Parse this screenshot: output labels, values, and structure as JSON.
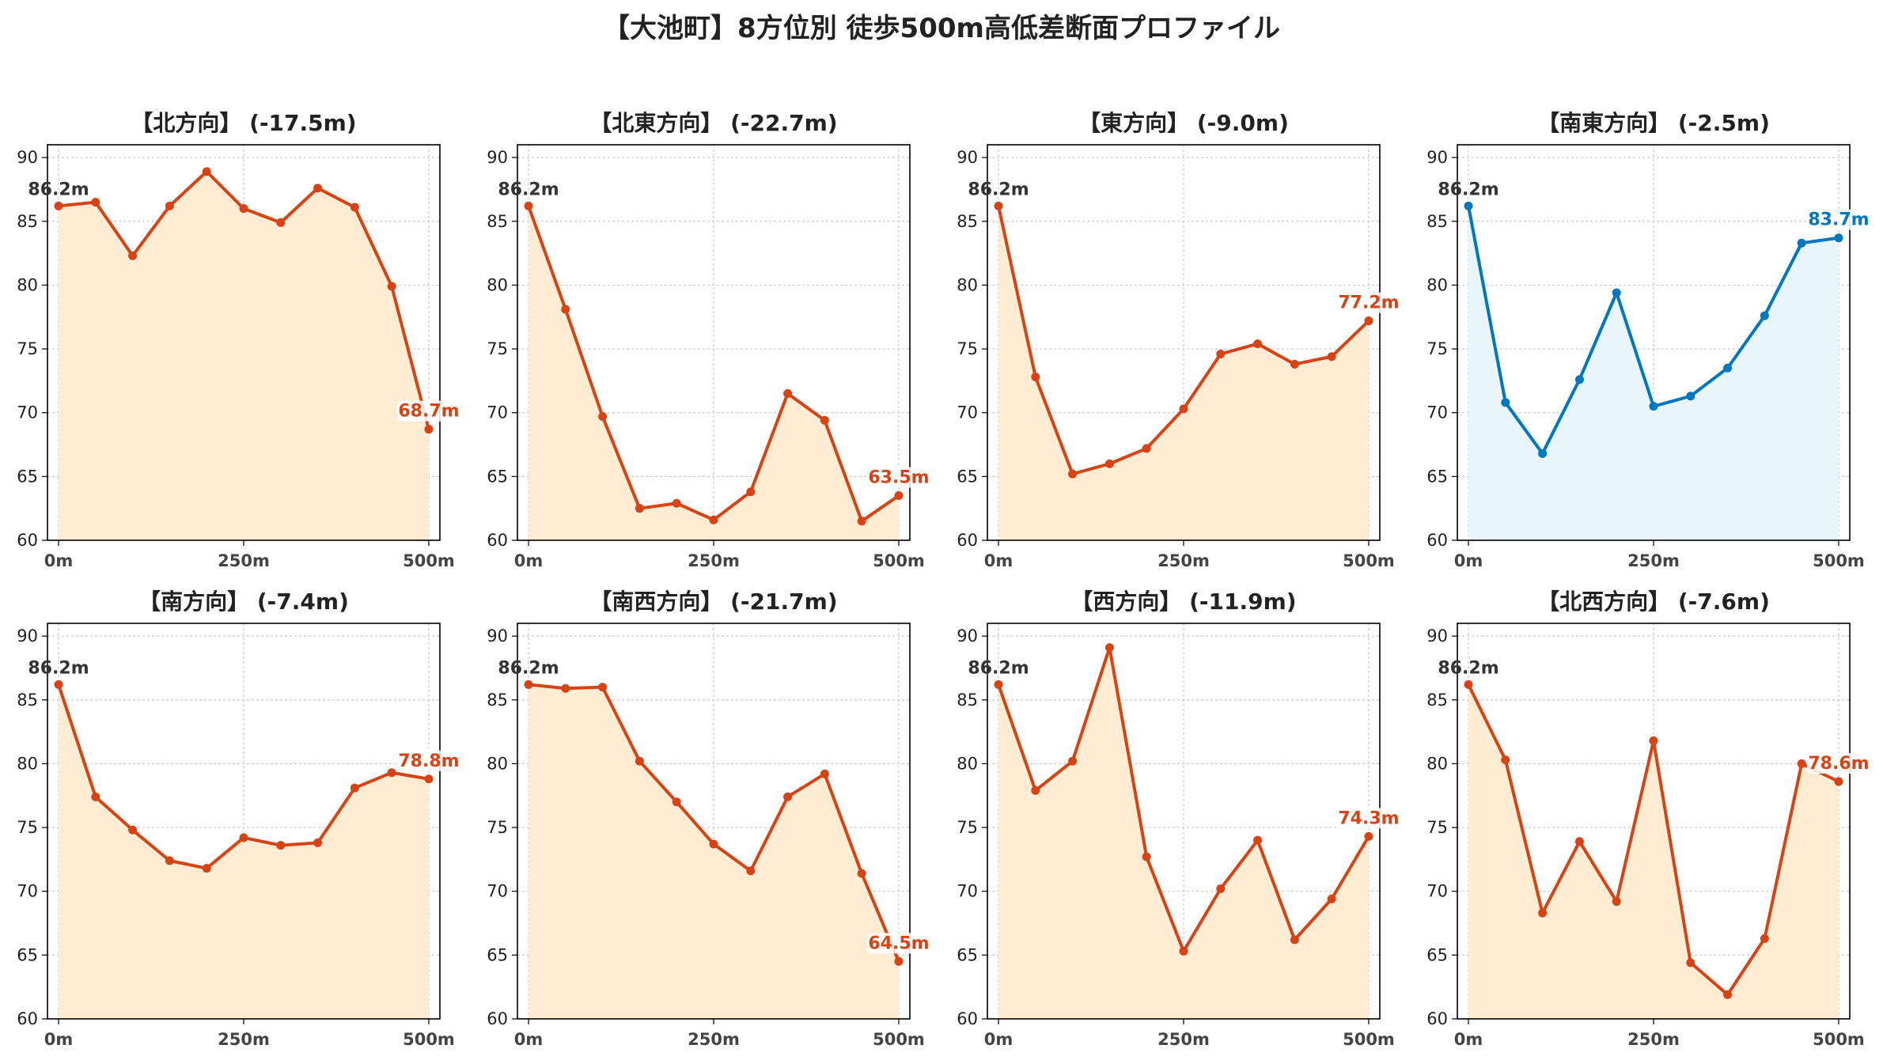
{
  "title": "【大池町】8方位別 徒歩500m高低差断面プロファイル",
  "colors": {
    "down_line": "#d84315",
    "down_fill": "#ffecd2",
    "up_line": "#0277bd",
    "up_fill": "#e8f5fb",
    "start_label": "#333333",
    "grid": "#c8c8c8",
    "axis": "#000000"
  },
  "chart_data": [
    {
      "type": "area",
      "title": "【北方向】 (-17.5m)",
      "x": [
        0,
        50,
        100,
        150,
        200,
        250,
        300,
        350,
        400,
        450,
        500
      ],
      "y": [
        86.2,
        86.5,
        82.3,
        86.2,
        88.9,
        86.0,
        84.9,
        87.6,
        86.1,
        79.9,
        68.7
      ],
      "start_label": "86.2m",
      "end_label": "68.7m",
      "trend": "down",
      "ylim": [
        60,
        91
      ],
      "yticks": [
        "60",
        "65",
        "70",
        "75",
        "80",
        "85",
        "90"
      ],
      "xticks": [
        "0m",
        "250m",
        "500m"
      ],
      "grid": true
    },
    {
      "type": "area",
      "title": "【北東方向】 (-22.7m)",
      "x": [
        0,
        50,
        100,
        150,
        200,
        250,
        300,
        350,
        400,
        450,
        500
      ],
      "y": [
        86.2,
        78.1,
        69.7,
        62.5,
        62.9,
        61.6,
        63.8,
        71.5,
        69.4,
        61.5,
        63.5
      ],
      "start_label": "86.2m",
      "end_label": "63.5m",
      "trend": "down",
      "ylim": [
        60,
        91
      ],
      "yticks": [
        "60",
        "65",
        "70",
        "75",
        "80",
        "85",
        "90"
      ],
      "xticks": [
        "0m",
        "250m",
        "500m"
      ],
      "grid": true
    },
    {
      "type": "area",
      "title": "【東方向】 (-9.0m)",
      "x": [
        0,
        50,
        100,
        150,
        200,
        250,
        300,
        350,
        400,
        450,
        500
      ],
      "y": [
        86.2,
        72.8,
        65.2,
        66.0,
        67.2,
        70.3,
        74.6,
        75.4,
        73.8,
        74.4,
        77.2
      ],
      "start_label": "86.2m",
      "end_label": "77.2m",
      "trend": "down",
      "ylim": [
        60,
        91
      ],
      "yticks": [
        "60",
        "65",
        "70",
        "75",
        "80",
        "85",
        "90"
      ],
      "xticks": [
        "0m",
        "250m",
        "500m"
      ],
      "grid": true
    },
    {
      "type": "area",
      "title": "【南東方向】 (-2.5m)",
      "x": [
        0,
        50,
        100,
        150,
        200,
        250,
        300,
        350,
        400,
        450,
        500
      ],
      "y": [
        86.2,
        70.8,
        66.8,
        72.6,
        79.4,
        70.5,
        71.3,
        73.5,
        77.6,
        83.3,
        83.7
      ],
      "start_label": "86.2m",
      "end_label": "83.7m",
      "trend": "up",
      "ylim": [
        60,
        91
      ],
      "yticks": [
        "60",
        "65",
        "70",
        "75",
        "80",
        "85",
        "90"
      ],
      "xticks": [
        "0m",
        "250m",
        "500m"
      ],
      "grid": true
    },
    {
      "type": "area",
      "title": "【南方向】 (-7.4m)",
      "x": [
        0,
        50,
        100,
        150,
        200,
        250,
        300,
        350,
        400,
        450,
        500
      ],
      "y": [
        86.2,
        77.4,
        74.8,
        72.4,
        71.8,
        74.2,
        73.6,
        73.8,
        78.1,
        79.3,
        78.8
      ],
      "start_label": "86.2m",
      "end_label": "78.8m",
      "trend": "down",
      "ylim": [
        60,
        91
      ],
      "yticks": [
        "60",
        "65",
        "70",
        "75",
        "80",
        "85",
        "90"
      ],
      "xticks": [
        "0m",
        "250m",
        "500m"
      ],
      "grid": true
    },
    {
      "type": "area",
      "title": "【南西方向】 (-21.7m)",
      "x": [
        0,
        50,
        100,
        150,
        200,
        250,
        300,
        350,
        400,
        450,
        500
      ],
      "y": [
        86.2,
        85.9,
        86.0,
        80.2,
        77.0,
        73.7,
        71.6,
        77.4,
        79.2,
        71.4,
        64.5
      ],
      "start_label": "86.2m",
      "end_label": "64.5m",
      "trend": "down",
      "ylim": [
        60,
        91
      ],
      "yticks": [
        "60",
        "65",
        "70",
        "75",
        "80",
        "85",
        "90"
      ],
      "xticks": [
        "0m",
        "250m",
        "500m"
      ],
      "grid": true
    },
    {
      "type": "area",
      "title": "【西方向】 (-11.9m)",
      "x": [
        0,
        50,
        100,
        150,
        200,
        250,
        300,
        350,
        400,
        450,
        500
      ],
      "y": [
        86.2,
        77.9,
        80.2,
        89.1,
        72.7,
        65.3,
        70.2,
        74.0,
        66.2,
        69.4,
        74.3
      ],
      "start_label": "86.2m",
      "end_label": "74.3m",
      "trend": "down",
      "ylim": [
        60,
        91
      ],
      "yticks": [
        "60",
        "65",
        "70",
        "75",
        "80",
        "85",
        "90"
      ],
      "xticks": [
        "0m",
        "250m",
        "500m"
      ],
      "grid": true
    },
    {
      "type": "area",
      "title": "【北西方向】 (-7.6m)",
      "x": [
        0,
        50,
        100,
        150,
        200,
        250,
        300,
        350,
        400,
        450,
        500
      ],
      "y": [
        86.2,
        80.3,
        68.3,
        73.9,
        69.2,
        81.8,
        64.4,
        61.9,
        66.3,
        80.0,
        78.6
      ],
      "start_label": "86.2m",
      "end_label": "78.6m",
      "trend": "down",
      "ylim": [
        60,
        91
      ],
      "yticks": [
        "60",
        "65",
        "70",
        "75",
        "80",
        "85",
        "90"
      ],
      "xticks": [
        "0m",
        "250m",
        "500m"
      ],
      "grid": true
    }
  ]
}
